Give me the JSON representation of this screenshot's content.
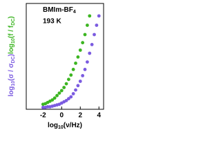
{
  "chart_data": {
    "type": "scatter",
    "title_parts": [
      "BMIm-BF",
      "4"
    ],
    "annotation": "193 K",
    "xlabel_parts": [
      "log",
      "10",
      "(ν/Hz)"
    ],
    "ylabel_groups": [
      {
        "color": "#7b5be0",
        "parts": [
          "log",
          "10",
          "(σ / σ",
          "DC",
          ")"
        ]
      },
      {
        "color": "#3cb521",
        "parts": [
          "log",
          "10",
          "(f / f",
          "DC",
          ")"
        ]
      }
    ],
    "xlim": [
      -3.8,
      4.5
    ],
    "ylim": [
      0,
      1.7
    ],
    "xticks": [
      -2,
      0,
      2,
      4
    ],
    "series": [
      {
        "color": "#3cb521",
        "x": [
          -2,
          -1.75,
          -1.5,
          -1.25,
          -1,
          -0.75,
          -0.5,
          -0.25,
          0,
          0.25,
          0.5,
          0.75,
          1,
          1.25,
          1.5,
          1.75,
          2,
          2.25,
          2.5,
          2.75,
          3
        ],
        "values": [
          0.08,
          0.09,
          0.11,
          0.13,
          0.15,
          0.18,
          0.22,
          0.26,
          0.3,
          0.35,
          0.41,
          0.48,
          0.55,
          0.64,
          0.74,
          0.84,
          0.95,
          1.07,
          1.2,
          1.35,
          1.5
        ]
      },
      {
        "color": "#7b5be0",
        "x": [
          -2,
          -1.75,
          -1.5,
          -1.25,
          -1,
          -0.75,
          -0.5,
          -0.25,
          0,
          0.25,
          0.5,
          0.75,
          1,
          1.25,
          1.5,
          1.75,
          2,
          2.25,
          2.5,
          2.75,
          3,
          3.25,
          3.5,
          3.75,
          4
        ],
        "values": [
          0.03,
          0.03,
          0.04,
          0.04,
          0.05,
          0.06,
          0.07,
          0.08,
          0.1,
          0.12,
          0.14,
          0.17,
          0.2,
          0.25,
          0.31,
          0.38,
          0.45,
          0.54,
          0.64,
          0.76,
          0.9,
          1.04,
          1.2,
          1.35,
          1.5
        ]
      }
    ]
  }
}
